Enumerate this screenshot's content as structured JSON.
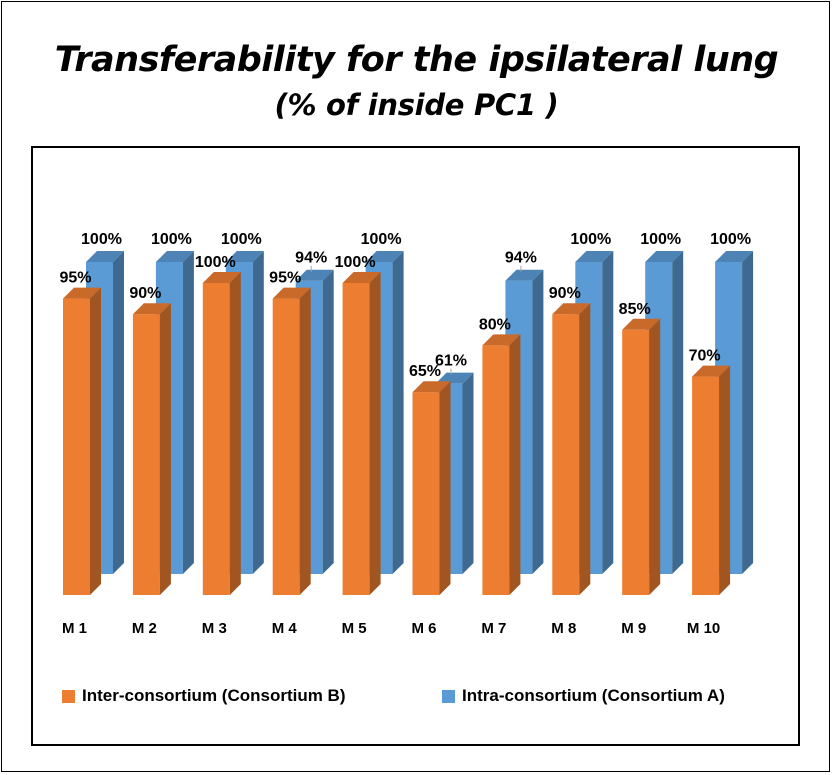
{
  "title": "Transferability for the ipsilateral lung",
  "subtitle": "(% of inside PC1 )",
  "chart_data": {
    "type": "bar",
    "categories": [
      "M 1",
      "M 2",
      "M 3",
      "M 4",
      "M 5",
      "M 6",
      "M 7",
      "M 8",
      "M 9",
      "M 10"
    ],
    "series": [
      {
        "name": "Inter-consortium (Consortium B)",
        "color": "#ED7D31",
        "values": [
          95,
          90,
          100,
          95,
          100,
          65,
          80,
          90,
          85,
          70
        ],
        "labels": [
          "95%",
          "90%",
          "100%",
          "95%",
          "100%",
          "65%",
          "80%",
          "90%",
          "85%",
          "70%"
        ]
      },
      {
        "name": "Intra-consortium (Consortium A)",
        "color": "#5B9BD5",
        "values": [
          100,
          100,
          100,
          94,
          100,
          61,
          94,
          100,
          100,
          100
        ],
        "labels": [
          "100%",
          "100%",
          "100%",
          "94%",
          "100%",
          "61%",
          "94%",
          "100%",
          "100%",
          "100%"
        ]
      }
    ],
    "value_format": "percent",
    "ylim": [
      0,
      100
    ],
    "grid": false,
    "legend_position": "bottom",
    "style": "3d-clustered-column"
  }
}
